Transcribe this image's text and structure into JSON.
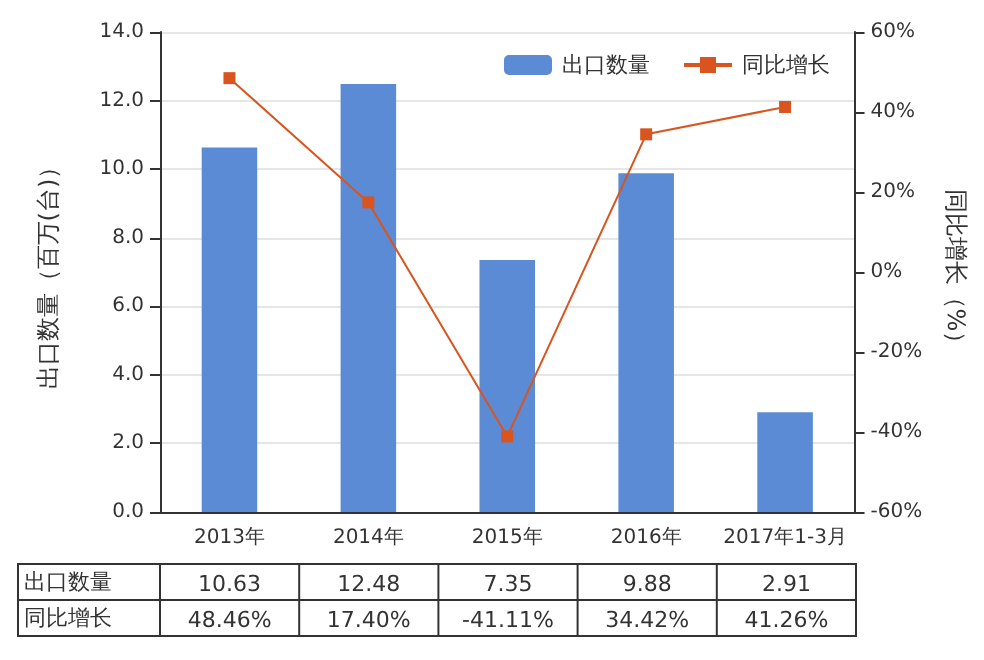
{
  "chart_data": {
    "type": "bar",
    "categories": [
      "2013年",
      "2014年",
      "2015年",
      "2016年",
      "2017年1-3月"
    ],
    "ylabel": "出口数量（百万(台)）",
    "y2label": "同比增长（%）",
    "series": [
      {
        "name": "出口数量",
        "color": "#5b8bd5",
        "values": [
          10.63,
          12.48,
          7.35,
          9.88,
          2.91
        ],
        "value_labels": [
          "10.63",
          "12.48",
          "7.35",
          "9.88",
          "2.91"
        ]
      },
      {
        "name": "同比增长",
        "type": "line",
        "axis": "y2",
        "color": "#d9541e",
        "values": [
          48.46,
          17.4,
          -41.11,
          34.42,
          41.26
        ],
        "value_labels": [
          "48.46%",
          "17.40%",
          "-41.11%",
          "34.42%",
          "41.26%"
        ]
      }
    ],
    "ylim": [
      0,
      14
    ],
    "yticks": [
      {
        "value": 0,
        "label": "0.0"
      },
      {
        "value": 2,
        "label": "2.0"
      },
      {
        "value": 4,
        "label": "4.0"
      },
      {
        "value": 6,
        "label": "6.0"
      },
      {
        "value": 8,
        "label": "8.0"
      },
      {
        "value": 10,
        "label": "10.0"
      },
      {
        "value": 12,
        "label": "12.0"
      },
      {
        "value": 14,
        "label": "14.0"
      }
    ],
    "y2lim": [
      -60,
      60
    ],
    "y2ticks": [
      {
        "value": -60,
        "label": "-60%"
      },
      {
        "value": -40,
        "label": "-40%"
      },
      {
        "value": -20,
        "label": "-20%"
      },
      {
        "value": 0,
        "label": "0%"
      },
      {
        "value": 20,
        "label": "20%"
      },
      {
        "value": 40,
        "label": "40%"
      },
      {
        "value": 60,
        "label": "60%"
      }
    ],
    "grid": "y",
    "legend": "top right",
    "marker": "square",
    "line_style": "solid"
  }
}
